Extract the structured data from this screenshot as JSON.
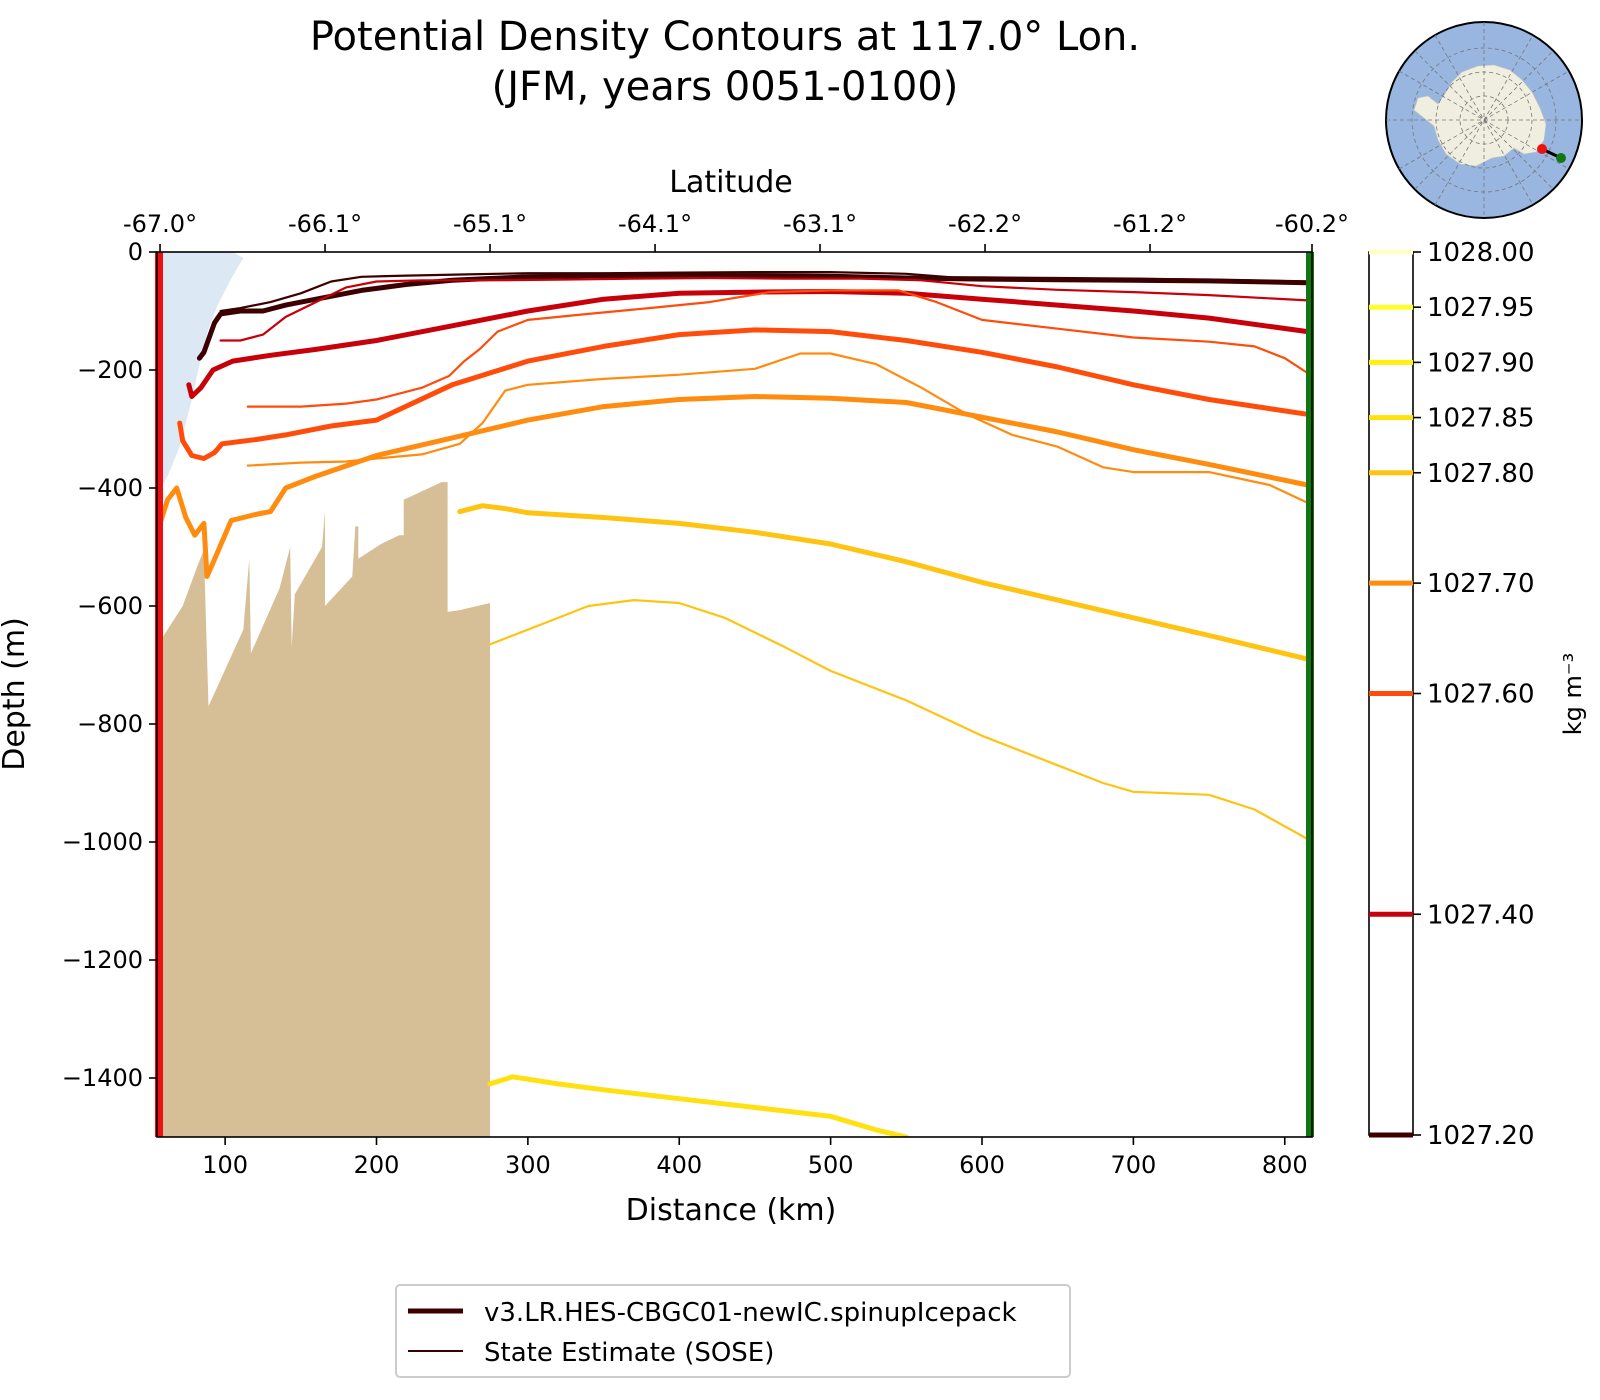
{
  "title_line1": "Potential Density Contours at 117.0° Lon.",
  "title_line2": "(JFM, years 0051-0100)",
  "chart_data": {
    "type": "line",
    "xlabel": "Distance (km)",
    "ylabel": "Depth (m)",
    "top_xlabel": "Latitude",
    "xlim": [
      55,
      818
    ],
    "ylim": [
      -1500,
      0
    ],
    "x_ticks": [
      100,
      200,
      300,
      400,
      500,
      600,
      700,
      800
    ],
    "y_ticks": [
      0,
      -200,
      -400,
      -600,
      -800,
      -1000,
      -1200,
      -1400
    ],
    "y_tick_labels": [
      "0",
      "−200",
      "−400",
      "−600",
      "−800",
      "−1000",
      "−1200",
      "−1400"
    ],
    "top_ticks": [
      {
        "x": 57,
        "label": "-67.0°"
      },
      {
        "x": 166,
        "label": "-66.1°"
      },
      {
        "x": 275,
        "label": "-65.1°"
      },
      {
        "x": 384,
        "label": "-64.1°"
      },
      {
        "x": 493,
        "label": "-63.1°"
      },
      {
        "x": 602,
        "label": "-62.2°"
      },
      {
        "x": 711,
        "label": "-61.2°"
      },
      {
        "x": 818,
        "label": "-60.2°"
      }
    ],
    "colorbar": {
      "label": "kg m⁻³",
      "vmin": 1027.2,
      "vmax": 1028.0,
      "levels": [
        {
          "value": 1027.2,
          "label": "1027.20",
          "color": "#3d0000"
        },
        {
          "value": 1027.4,
          "label": "1027.40",
          "color": "#c8000a"
        },
        {
          "value": 1027.6,
          "label": "1027.60",
          "color": "#ff4c0a"
        },
        {
          "value": 1027.7,
          "label": "1027.70",
          "color": "#ff8c0f"
        },
        {
          "value": 1027.8,
          "label": "1027.80",
          "color": "#ffc312"
        },
        {
          "value": 1027.85,
          "label": "1027.85",
          "color": "#ffe010"
        },
        {
          "value": 1027.9,
          "label": "1027.90",
          "color": "#fff012"
        },
        {
          "value": 1027.95,
          "label": "1027.95",
          "color": "#ffff30"
        },
        {
          "value": 1028.0,
          "label": "1028.00",
          "color": "#ffffc8"
        }
      ]
    },
    "legend": {
      "position": "bottom-center",
      "entries": [
        {
          "label": "v3.LR.HES-CBGC01-newIC.spinupIcepack",
          "style": "thick",
          "color": "#3d0000"
        },
        {
          "label": "State Estimate (SOSE)",
          "style": "thin",
          "color": "#3d0000"
        }
      ]
    },
    "ice_shelf_color": "#dde8f5",
    "bathymetry_color": "#d6bf96",
    "start_marker_color": "#ee1111",
    "end_marker_color": "#117711",
    "ice_shelf": [
      [
        57,
        0
      ],
      [
        105,
        0
      ],
      [
        112,
        -10
      ],
      [
        103,
        -50
      ],
      [
        95,
        -90
      ],
      [
        89,
        -130
      ],
      [
        84,
        -180
      ],
      [
        78,
        -250
      ],
      [
        70,
        -330
      ],
      [
        62,
        -380
      ],
      [
        57,
        -400
      ]
    ],
    "bathymetry": [
      [
        57,
        -660
      ],
      [
        72,
        -600
      ],
      [
        82,
        -530
      ],
      [
        86,
        -505
      ],
      [
        89,
        -770
      ],
      [
        112,
        -640
      ],
      [
        116,
        -520
      ],
      [
        117,
        -680
      ],
      [
        136,
        -570
      ],
      [
        143,
        -500
      ],
      [
        144,
        -670
      ],
      [
        146,
        -580
      ],
      [
        164,
        -500
      ],
      [
        166,
        -440
      ],
      [
        166,
        -600
      ],
      [
        184,
        -550
      ],
      [
        186,
        -465
      ],
      [
        188,
        -465
      ],
      [
        188,
        -520
      ],
      [
        203,
        -495
      ],
      [
        215,
        -480
      ],
      [
        218,
        -480
      ],
      [
        218,
        -420
      ],
      [
        243,
        -390
      ],
      [
        247,
        -390
      ],
      [
        247,
        -610
      ],
      [
        255,
        -607
      ],
      [
        275,
        -595
      ],
      [
        275,
        -1500
      ],
      [
        57,
        -1500
      ]
    ],
    "series": [
      {
        "density": 1027.2,
        "kind": "model",
        "color": "#3d0000",
        "points": [
          [
            83,
            -180
          ],
          [
            86,
            -170
          ],
          [
            93,
            -120
          ],
          [
            97,
            -105
          ],
          [
            110,
            -100
          ],
          [
            125,
            -100
          ],
          [
            140,
            -90
          ],
          [
            160,
            -80
          ],
          [
            190,
            -65
          ],
          [
            220,
            -55
          ],
          [
            250,
            -48
          ],
          [
            300,
            -42
          ],
          [
            350,
            -40
          ],
          [
            400,
            -40
          ],
          [
            450,
            -40
          ],
          [
            500,
            -41
          ],
          [
            550,
            -44
          ],
          [
            600,
            -46
          ],
          [
            650,
            -47
          ],
          [
            700,
            -48
          ],
          [
            750,
            -49
          ],
          [
            815,
            -52
          ]
        ]
      },
      {
        "density": 1027.2,
        "kind": "sose",
        "color": "#3d0000",
        "points": [
          [
            97,
            -100
          ],
          [
            110,
            -95
          ],
          [
            130,
            -85
          ],
          [
            150,
            -70
          ],
          [
            170,
            -50
          ],
          [
            190,
            -42
          ],
          [
            220,
            -40
          ],
          [
            260,
            -38
          ],
          [
            300,
            -36
          ],
          [
            350,
            -36
          ],
          [
            400,
            -35
          ],
          [
            450,
            -34
          ],
          [
            500,
            -34
          ],
          [
            550,
            -37
          ],
          [
            580,
            -43
          ],
          [
            600,
            -43
          ],
          [
            650,
            -44
          ],
          [
            700,
            -45
          ],
          [
            750,
            -47
          ],
          [
            815,
            -50
          ]
        ]
      },
      {
        "density": 1027.4,
        "kind": "model",
        "color": "#c8000a",
        "points": [
          [
            76,
            -225
          ],
          [
            78,
            -245
          ],
          [
            84,
            -230
          ],
          [
            92,
            -200
          ],
          [
            105,
            -185
          ],
          [
            130,
            -175
          ],
          [
            160,
            -165
          ],
          [
            200,
            -150
          ],
          [
            250,
            -125
          ],
          [
            300,
            -100
          ],
          [
            350,
            -80
          ],
          [
            400,
            -70
          ],
          [
            450,
            -68
          ],
          [
            500,
            -67
          ],
          [
            550,
            -70
          ],
          [
            600,
            -80
          ],
          [
            650,
            -90
          ],
          [
            700,
            -100
          ],
          [
            750,
            -112
          ],
          [
            815,
            -135
          ]
        ]
      },
      {
        "density": 1027.4,
        "kind": "sose",
        "color": "#c8000a",
        "points": [
          [
            97,
            -150
          ],
          [
            110,
            -150
          ],
          [
            125,
            -140
          ],
          [
            140,
            -110
          ],
          [
            160,
            -85
          ],
          [
            180,
            -60
          ],
          [
            200,
            -50
          ],
          [
            230,
            -48
          ],
          [
            270,
            -48
          ],
          [
            320,
            -47
          ],
          [
            370,
            -45
          ],
          [
            420,
            -44
          ],
          [
            470,
            -45
          ],
          [
            520,
            -45
          ],
          [
            560,
            -48
          ],
          [
            600,
            -58
          ],
          [
            650,
            -64
          ],
          [
            700,
            -68
          ],
          [
            750,
            -73
          ],
          [
            815,
            -82
          ]
        ]
      },
      {
        "density": 1027.6,
        "kind": "model",
        "color": "#ff4c0a",
        "points": [
          [
            70,
            -290
          ],
          [
            72,
            -320
          ],
          [
            78,
            -345
          ],
          [
            86,
            -350
          ],
          [
            93,
            -340
          ],
          [
            98,
            -325
          ],
          [
            120,
            -318
          ],
          [
            140,
            -310
          ],
          [
            170,
            -295
          ],
          [
            200,
            -285
          ],
          [
            250,
            -225
          ],
          [
            300,
            -185
          ],
          [
            350,
            -160
          ],
          [
            400,
            -140
          ],
          [
            450,
            -132
          ],
          [
            500,
            -135
          ],
          [
            550,
            -150
          ],
          [
            600,
            -170
          ],
          [
            650,
            -195
          ],
          [
            700,
            -225
          ],
          [
            750,
            -250
          ],
          [
            815,
            -275
          ]
        ]
      },
      {
        "density": 1027.6,
        "kind": "sose",
        "color": "#ff4c0a",
        "points": [
          [
            115,
            -262
          ],
          [
            150,
            -262
          ],
          [
            180,
            -257
          ],
          [
            200,
            -250
          ],
          [
            230,
            -230
          ],
          [
            248,
            -210
          ],
          [
            258,
            -185
          ],
          [
            268,
            -165
          ],
          [
            280,
            -135
          ],
          [
            300,
            -115
          ],
          [
            340,
            -105
          ],
          [
            380,
            -95
          ],
          [
            420,
            -85
          ],
          [
            460,
            -68
          ],
          [
            500,
            -65
          ],
          [
            545,
            -65
          ],
          [
            570,
            -85
          ],
          [
            600,
            -115
          ],
          [
            650,
            -130
          ],
          [
            700,
            -145
          ],
          [
            750,
            -152
          ],
          [
            780,
            -160
          ],
          [
            800,
            -180
          ],
          [
            815,
            -205
          ]
        ]
      },
      {
        "density": 1027.7,
        "kind": "model",
        "color": "#ff8c0f",
        "points": [
          [
            57,
            -460
          ],
          [
            62,
            -420
          ],
          [
            68,
            -400
          ],
          [
            74,
            -450
          ],
          [
            80,
            -480
          ],
          [
            86,
            -460
          ],
          [
            88,
            -550
          ],
          [
            94,
            -515
          ],
          [
            104,
            -455
          ],
          [
            120,
            -445
          ],
          [
            130,
            -440
          ],
          [
            140,
            -400
          ],
          [
            160,
            -380
          ],
          [
            200,
            -345
          ],
          [
            250,
            -315
          ],
          [
            300,
            -285
          ],
          [
            350,
            -262
          ],
          [
            400,
            -250
          ],
          [
            450,
            -245
          ],
          [
            500,
            -248
          ],
          [
            550,
            -255
          ],
          [
            600,
            -280
          ],
          [
            650,
            -305
          ],
          [
            700,
            -335
          ],
          [
            750,
            -360
          ],
          [
            815,
            -395
          ]
        ]
      },
      {
        "density": 1027.7,
        "kind": "sose",
        "color": "#ff8c0f",
        "points": [
          [
            115,
            -362
          ],
          [
            150,
            -357
          ],
          [
            180,
            -355
          ],
          [
            200,
            -350
          ],
          [
            230,
            -343
          ],
          [
            255,
            -325
          ],
          [
            270,
            -290
          ],
          [
            285,
            -235
          ],
          [
            300,
            -225
          ],
          [
            350,
            -215
          ],
          [
            400,
            -208
          ],
          [
            450,
            -198
          ],
          [
            480,
            -172
          ],
          [
            500,
            -172
          ],
          [
            530,
            -190
          ],
          [
            560,
            -230
          ],
          [
            590,
            -275
          ],
          [
            620,
            -310
          ],
          [
            650,
            -330
          ],
          [
            680,
            -365
          ],
          [
            700,
            -373
          ],
          [
            750,
            -373
          ],
          [
            790,
            -395
          ],
          [
            815,
            -425
          ]
        ]
      },
      {
        "density": 1027.8,
        "kind": "model",
        "color": "#ffc312",
        "points": [
          [
            255,
            -440
          ],
          [
            270,
            -430
          ],
          [
            285,
            -435
          ],
          [
            300,
            -442
          ],
          [
            350,
            -450
          ],
          [
            400,
            -460
          ],
          [
            450,
            -475
          ],
          [
            500,
            -495
          ],
          [
            550,
            -525
          ],
          [
            600,
            -560
          ],
          [
            650,
            -590
          ],
          [
            700,
            -620
          ],
          [
            750,
            -650
          ],
          [
            815,
            -690
          ]
        ]
      },
      {
        "density": 1027.8,
        "kind": "sose",
        "color": "#ffc312",
        "points": [
          [
            275,
            -665
          ],
          [
            300,
            -640
          ],
          [
            340,
            -600
          ],
          [
            370,
            -590
          ],
          [
            400,
            -595
          ],
          [
            430,
            -620
          ],
          [
            470,
            -670
          ],
          [
            500,
            -710
          ],
          [
            550,
            -760
          ],
          [
            600,
            -820
          ],
          [
            650,
            -870
          ],
          [
            680,
            -900
          ],
          [
            700,
            -915
          ],
          [
            750,
            -920
          ],
          [
            780,
            -945
          ],
          [
            815,
            -995
          ]
        ]
      },
      {
        "density": 1027.85,
        "kind": "model",
        "color": "#ffe010",
        "points": [
          [
            275,
            -1410
          ],
          [
            290,
            -1398
          ],
          [
            320,
            -1410
          ],
          [
            350,
            -1420
          ],
          [
            400,
            -1435
          ],
          [
            450,
            -1450
          ],
          [
            500,
            -1465
          ],
          [
            530,
            -1488
          ],
          [
            550,
            -1500
          ]
        ]
      }
    ]
  }
}
